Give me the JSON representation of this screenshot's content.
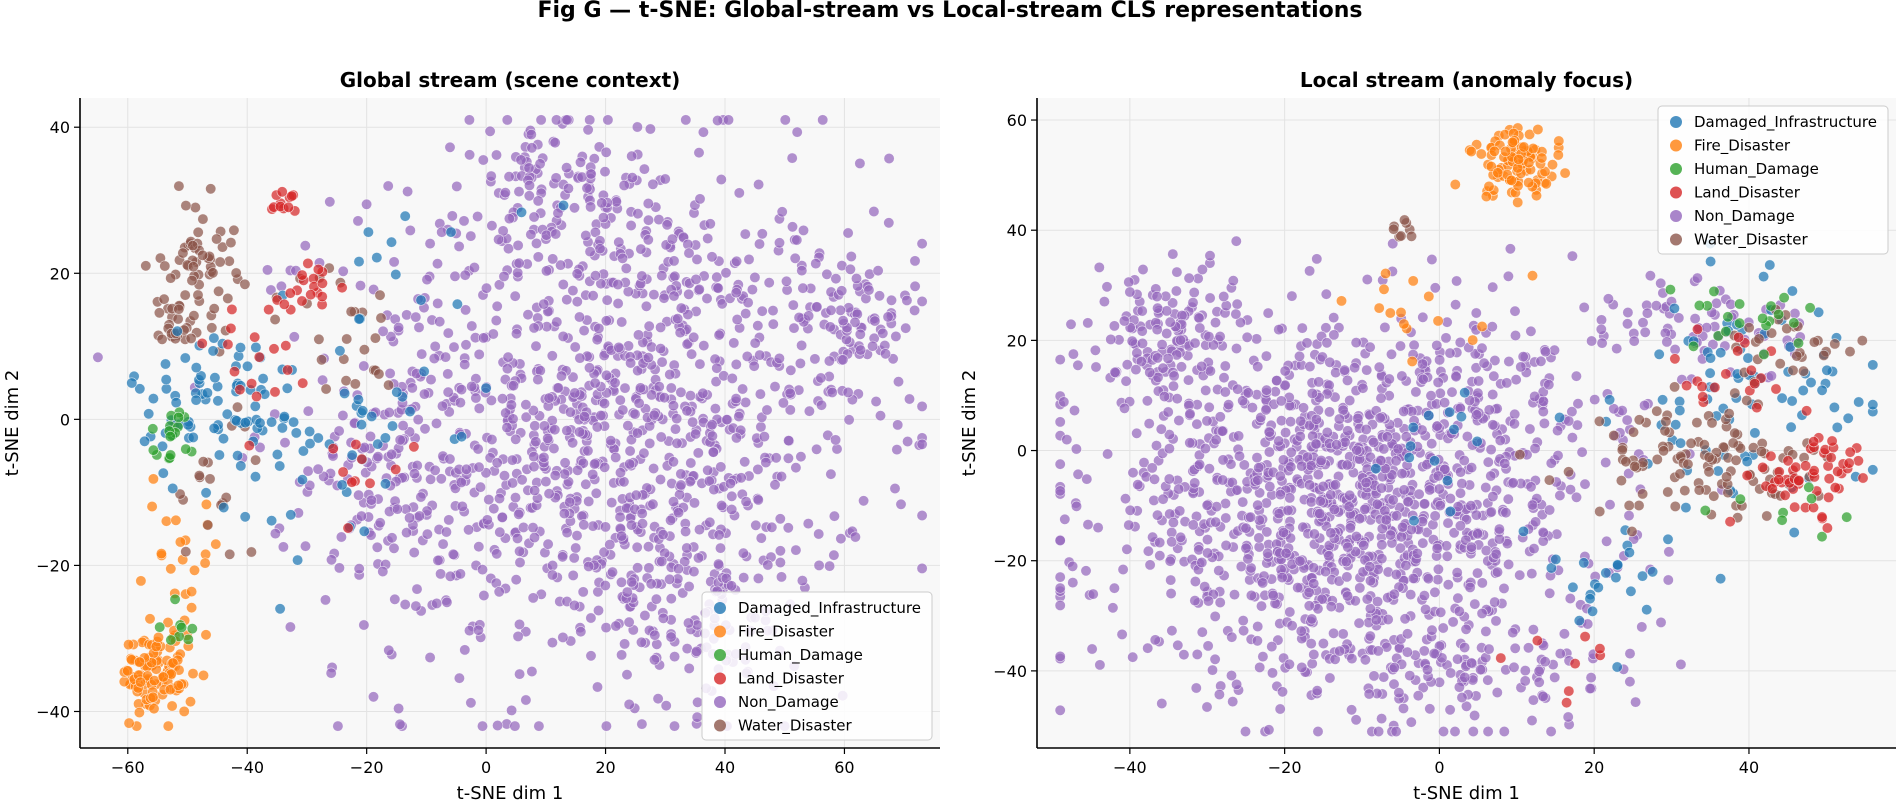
{
  "figure": {
    "title": "Fig G — t-SNE: Global-stream vs Local-stream CLS representations"
  },
  "chart_data": [
    {
      "type": "scatter",
      "title": "Global stream (scene context)",
      "xlabel": "t-SNE dim 1",
      "ylabel": "t-SNE dim 2",
      "xlim": [
        -68,
        76
      ],
      "ylim": [
        -45,
        44
      ],
      "xticks": [
        -60,
        -40,
        -20,
        0,
        20,
        40,
        60
      ],
      "yticks": [
        -40,
        -20,
        0,
        20,
        40
      ],
      "grid": true,
      "legend": "lower-right",
      "series": [
        {
          "name": "Damaged_Infrastructure",
          "color": "#1f77b4"
        },
        {
          "name": "Fire_Disaster",
          "color": "#ff7f0e"
        },
        {
          "name": "Human_Damage",
          "color": "#2ca02c"
        },
        {
          "name": "Land_Disaster",
          "color": "#d62728"
        },
        {
          "name": "Non_Damage",
          "color": "#9467bd"
        },
        {
          "name": "Water_Disaster",
          "color": "#8c564b"
        }
      ],
      "clusters": [
        {
          "series": 4,
          "x": 20,
          "y": 0,
          "sx": 22,
          "sy": 18,
          "n": 1200
        },
        {
          "series": 4,
          "x": 62,
          "y": 14,
          "sx": 5,
          "sy": 5,
          "n": 90
        },
        {
          "series": 4,
          "x": 12,
          "y": 33,
          "sx": 8,
          "sy": 5,
          "n": 90
        },
        {
          "series": 4,
          "x": 35,
          "y": -25,
          "sx": 8,
          "sy": 8,
          "n": 80
        },
        {
          "series": 4,
          "x": -15,
          "y": -10,
          "sx": 6,
          "sy": 10,
          "n": 80
        },
        {
          "series": 1,
          "x": -55,
          "y": -35,
          "sx": 3,
          "sy": 3,
          "n": 110
        },
        {
          "series": 1,
          "x": -52,
          "y": -20,
          "sx": 4,
          "sy": 5,
          "n": 25
        },
        {
          "series": 5,
          "x": -48,
          "y": 22,
          "sx": 3,
          "sy": 4,
          "n": 60
        },
        {
          "series": 5,
          "x": -52,
          "y": 13,
          "sx": 2,
          "sy": 2,
          "n": 25
        },
        {
          "series": 5,
          "x": -25,
          "y": 12,
          "sx": 5,
          "sy": 5,
          "n": 25
        },
        {
          "series": 5,
          "x": -45,
          "y": -8,
          "sx": 4,
          "sy": 6,
          "n": 20
        },
        {
          "series": 0,
          "x": -45,
          "y": 2,
          "sx": 7,
          "sy": 6,
          "n": 85
        },
        {
          "series": 0,
          "x": -25,
          "y": -5,
          "sx": 8,
          "sy": 8,
          "n": 40
        },
        {
          "series": 0,
          "x": -10,
          "y": 20,
          "sx": 8,
          "sy": 8,
          "n": 15
        },
        {
          "series": 3,
          "x": -34,
          "y": 30,
          "sx": 1.2,
          "sy": 1.2,
          "n": 12
        },
        {
          "series": 3,
          "x": -28,
          "y": 18,
          "sx": 3,
          "sy": 2,
          "n": 18
        },
        {
          "series": 3,
          "x": -40,
          "y": 8,
          "sx": 4,
          "sy": 4,
          "n": 18
        },
        {
          "series": 3,
          "x": -20,
          "y": -5,
          "sx": 4,
          "sy": 4,
          "n": 10
        },
        {
          "series": 2,
          "x": -52,
          "y": -2,
          "sx": 2,
          "sy": 2,
          "n": 18
        },
        {
          "series": 2,
          "x": -52,
          "y": -28,
          "sx": 2,
          "sy": 2,
          "n": 8
        }
      ]
    },
    {
      "type": "scatter",
      "title": "Local stream (anomaly focus)",
      "xlabel": "t-SNE dim 1",
      "ylabel": "t-SNE dim 2",
      "xlim": [
        -52,
        59
      ],
      "ylim": [
        -54,
        64
      ],
      "xticks": [
        -40,
        -20,
        0,
        20,
        40
      ],
      "yticks": [
        -40,
        -20,
        0,
        20,
        40,
        60
      ],
      "grid": true,
      "legend": "upper-right",
      "series": [
        {
          "name": "Damaged_Infrastructure",
          "color": "#1f77b4"
        },
        {
          "name": "Fire_Disaster",
          "color": "#ff7f0e"
        },
        {
          "name": "Human_Damage",
          "color": "#2ca02c"
        },
        {
          "name": "Land_Disaster",
          "color": "#d62728"
        },
        {
          "name": "Non_Damage",
          "color": "#9467bd"
        },
        {
          "name": "Water_Disaster",
          "color": "#8c564b"
        }
      ],
      "clusters": [
        {
          "series": 4,
          "x": -12,
          "y": -10,
          "sx": 16,
          "sy": 16,
          "n": 1300
        },
        {
          "series": 4,
          "x": -35,
          "y": 20,
          "sx": 5,
          "sy": 8,
          "n": 150
        },
        {
          "series": 4,
          "x": 5,
          "y": -40,
          "sx": 10,
          "sy": 5,
          "n": 100
        },
        {
          "series": 4,
          "x": 35,
          "y": 22,
          "sx": 6,
          "sy": 5,
          "n": 70
        },
        {
          "series": 4,
          "x": 10,
          "y": 10,
          "sx": 7,
          "sy": 8,
          "n": 80
        },
        {
          "series": 1,
          "x": 10,
          "y": 52,
          "sx": 3,
          "sy": 3,
          "n": 100
        },
        {
          "series": 1,
          "x": 0,
          "y": 25,
          "sx": 6,
          "sy": 5,
          "n": 15
        },
        {
          "series": 0,
          "x": 40,
          "y": 10,
          "sx": 8,
          "sy": 10,
          "n": 85
        },
        {
          "series": 0,
          "x": 20,
          "y": -25,
          "sx": 5,
          "sy": 5,
          "n": 25
        },
        {
          "series": 0,
          "x": 0,
          "y": 0,
          "sx": 8,
          "sy": 8,
          "n": 15
        },
        {
          "series": 5,
          "x": 35,
          "y": -2,
          "sx": 8,
          "sy": 5,
          "n": 110
        },
        {
          "series": 5,
          "x": 45,
          "y": 18,
          "sx": 4,
          "sy": 4,
          "n": 30
        },
        {
          "series": 5,
          "x": -4,
          "y": 40,
          "sx": 1.5,
          "sy": 1,
          "n": 8
        },
        {
          "series": 3,
          "x": 48,
          "y": -5,
          "sx": 4,
          "sy": 4,
          "n": 55
        },
        {
          "series": 3,
          "x": 38,
          "y": 15,
          "sx": 5,
          "sy": 5,
          "n": 20
        },
        {
          "series": 3,
          "x": 15,
          "y": -40,
          "sx": 4,
          "sy": 4,
          "n": 8
        },
        {
          "series": 2,
          "x": 40,
          "y": 25,
          "sx": 5,
          "sy": 3,
          "n": 20
        },
        {
          "series": 2,
          "x": 45,
          "y": -10,
          "sx": 4,
          "sy": 3,
          "n": 8
        }
      ]
    }
  ]
}
